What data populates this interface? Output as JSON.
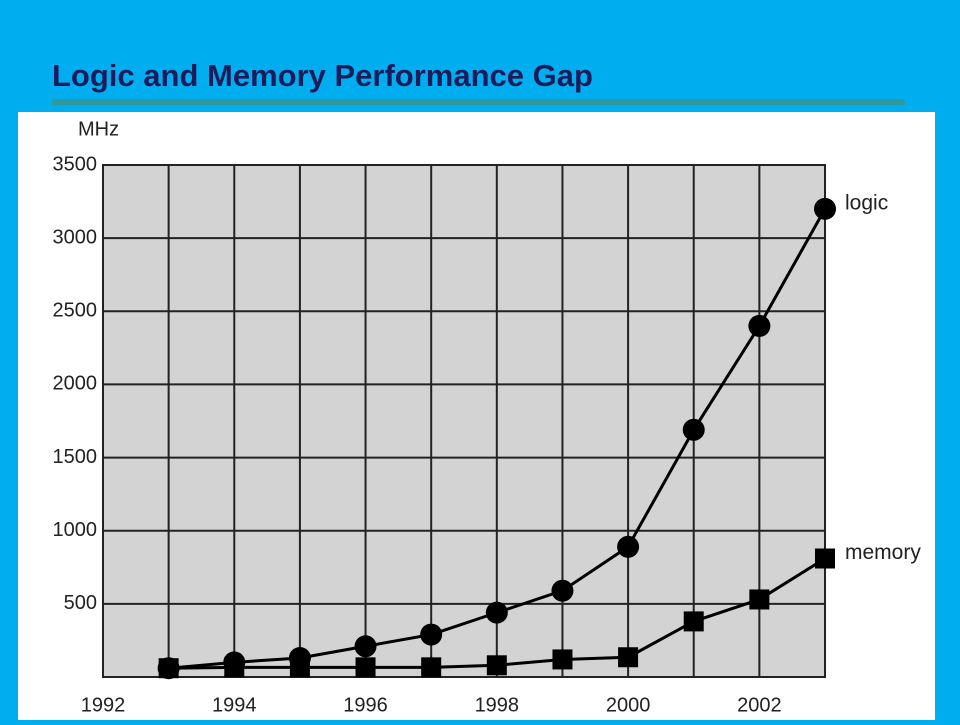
{
  "chart_data": {
    "type": "line",
    "title": "Logic and Memory Performance Gap",
    "y_label": "MHz",
    "x": [
      1993,
      1994,
      1995,
      1996,
      1997,
      1998,
      1999,
      2000,
      2001,
      2002,
      2003
    ],
    "series": [
      {
        "name": "logic",
        "color": "#000000",
        "marker": "circle",
        "values": [
          60,
          100,
          130,
          210,
          290,
          440,
          590,
          890,
          1690,
          2400,
          3200
        ]
      },
      {
        "name": "memory",
        "color": "#000000",
        "marker": "square",
        "values": [
          60,
          66,
          66,
          66,
          66,
          80,
          120,
          135,
          380,
          530,
          810
        ]
      }
    ],
    "xlim": [
      1992,
      2003
    ],
    "xticks": [
      1992,
      1994,
      1996,
      1998,
      2000,
      2002
    ],
    "x_minor_ticks": [
      1993,
      1995,
      1997,
      1999,
      2001,
      2003
    ],
    "ylim": [
      0,
      3500
    ],
    "yticks": [
      500,
      1000,
      1500,
      2000,
      2500,
      3000,
      3500
    ],
    "grid": true,
    "legend": "line-end"
  }
}
